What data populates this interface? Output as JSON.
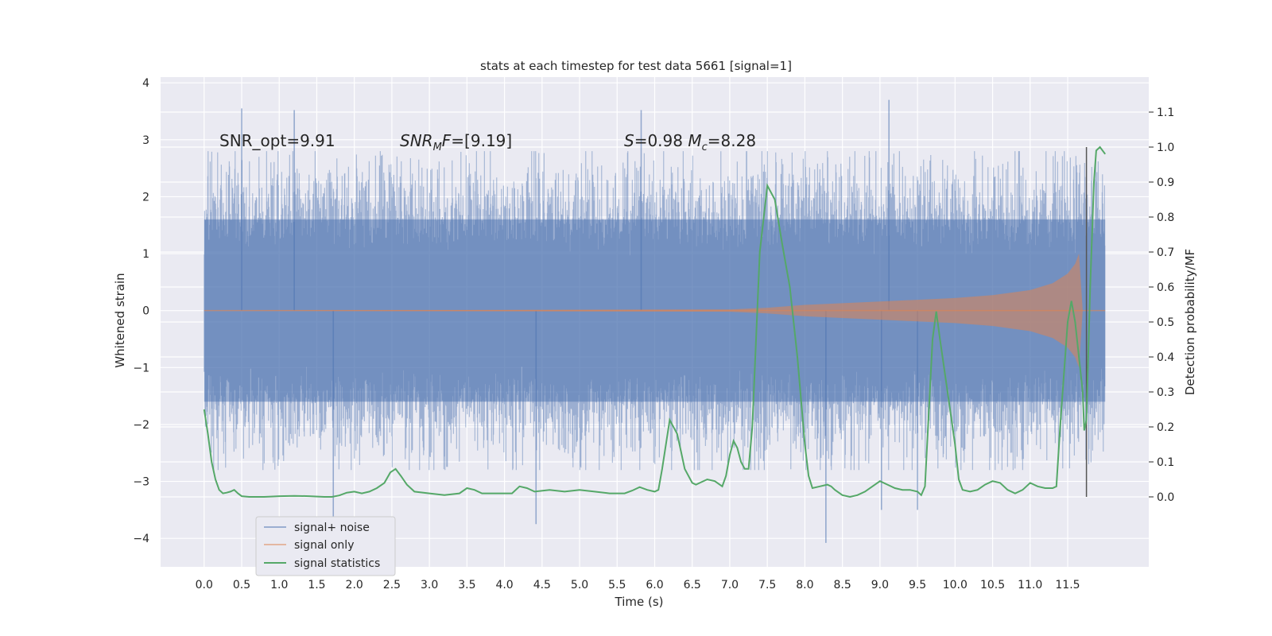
{
  "chart_data": {
    "type": "line",
    "title": "stats at each timestep for test data 5661 [signal=1]",
    "xlabel": "Time (s)",
    "ylabel_left": "Whitened strain",
    "ylabel_right": "Detection probability/MF",
    "xlim": [
      -0.58,
      12.58
    ],
    "ylim_left": [
      -4.5,
      4.1
    ],
    "ylim_right": [
      -0.2,
      1.2
    ],
    "x_ticks": [
      "0.0",
      "0.5",
      "1.0",
      "1.5",
      "2.0",
      "2.5",
      "3.0",
      "3.5",
      "4.0",
      "4.5",
      "5.0",
      "5.5",
      "6.0",
      "6.5",
      "7.0",
      "7.5",
      "8.0",
      "8.5",
      "9.0",
      "9.5",
      "10.0",
      "10.5",
      "11.0",
      "11.5"
    ],
    "y_ticks_left": [
      "4",
      "3",
      "2",
      "1",
      "0",
      "−1",
      "−2",
      "−3",
      "−4"
    ],
    "y_ticks_right": [
      "1.1",
      "1.0",
      "0.9",
      "0.8",
      "0.7",
      "0.6",
      "0.5",
      "0.4",
      "0.3",
      "0.2",
      "0.1",
      "0.0"
    ],
    "grid": true,
    "legend_position": "lower-left",
    "annotations": [
      {
        "text": "SNR_opt=9.91",
        "x": 0.2,
        "y": 2.9
      },
      {
        "text": "SNRMF=[9.19]",
        "x": 2.6,
        "y": 2.9
      },
      {
        "text": "S=0.98   Mc=8.28",
        "x": 5.6,
        "y": 2.9
      }
    ],
    "vertical_line_x": 11.75,
    "series": [
      {
        "name": "signal+ noise",
        "color": "#4c72b0",
        "axis": "left",
        "x_range": [
          0.0,
          12.0
        ],
        "band_envelope_abs": 1.6,
        "peak_points": [
          [
            0.5,
            3.55
          ],
          [
            1.2,
            3.52
          ],
          [
            5.82,
            3.52
          ],
          [
            9.12,
            3.7
          ],
          [
            8.28,
            -4.08
          ],
          [
            4.42,
            -3.75
          ],
          [
            1.72,
            -3.62
          ],
          [
            9.02,
            -3.5
          ],
          [
            9.5,
            -3.5
          ]
        ]
      },
      {
        "name": "signal only",
        "color": "#dd8452",
        "axis": "left",
        "x_range": [
          0.0,
          11.7
        ],
        "envelope": [
          [
            0.0,
            0.0
          ],
          [
            7.0,
            0.02
          ],
          [
            7.5,
            0.05
          ],
          [
            8.0,
            0.1
          ],
          [
            8.5,
            0.13
          ],
          [
            9.0,
            0.16
          ],
          [
            9.5,
            0.19
          ],
          [
            10.0,
            0.22
          ],
          [
            10.5,
            0.27
          ],
          [
            11.0,
            0.36
          ],
          [
            11.3,
            0.48
          ],
          [
            11.5,
            0.65
          ],
          [
            11.6,
            0.82
          ],
          [
            11.65,
            1.0
          ],
          [
            11.7,
            0.0
          ]
        ]
      },
      {
        "name": "signal statistics",
        "color": "#55a868",
        "axis": "right",
        "points": [
          [
            0.0,
            0.25
          ],
          [
            0.05,
            0.18
          ],
          [
            0.1,
            0.1
          ],
          [
            0.15,
            0.05
          ],
          [
            0.2,
            0.02
          ],
          [
            0.25,
            0.01
          ],
          [
            0.3,
            0.012
          ],
          [
            0.35,
            0.015
          ],
          [
            0.4,
            0.02
          ],
          [
            0.45,
            0.01
          ],
          [
            0.5,
            0.002
          ],
          [
            0.6,
            0.0
          ],
          [
            0.8,
            0.0
          ],
          [
            1.0,
            0.002
          ],
          [
            1.2,
            0.003
          ],
          [
            1.4,
            0.002
          ],
          [
            1.6,
            0.0
          ],
          [
            1.7,
            0.0
          ],
          [
            1.8,
            0.004
          ],
          [
            1.9,
            0.012
          ],
          [
            2.0,
            0.015
          ],
          [
            2.1,
            0.01
          ],
          [
            2.2,
            0.015
          ],
          [
            2.3,
            0.025
          ],
          [
            2.4,
            0.04
          ],
          [
            2.48,
            0.07
          ],
          [
            2.55,
            0.08
          ],
          [
            2.62,
            0.06
          ],
          [
            2.7,
            0.035
          ],
          [
            2.8,
            0.015
          ],
          [
            3.0,
            0.01
          ],
          [
            3.2,
            0.005
          ],
          [
            3.4,
            0.01
          ],
          [
            3.5,
            0.025
          ],
          [
            3.6,
            0.02
          ],
          [
            3.7,
            0.01
          ],
          [
            3.9,
            0.01
          ],
          [
            4.1,
            0.01
          ],
          [
            4.2,
            0.03
          ],
          [
            4.3,
            0.025
          ],
          [
            4.4,
            0.015
          ],
          [
            4.6,
            0.02
          ],
          [
            4.8,
            0.015
          ],
          [
            5.0,
            0.02
          ],
          [
            5.2,
            0.015
          ],
          [
            5.4,
            0.01
          ],
          [
            5.6,
            0.01
          ],
          [
            5.7,
            0.018
          ],
          [
            5.8,
            0.028
          ],
          [
            5.9,
            0.02
          ],
          [
            6.0,
            0.015
          ],
          [
            6.05,
            0.02
          ],
          [
            6.1,
            0.08
          ],
          [
            6.2,
            0.22
          ],
          [
            6.3,
            0.18
          ],
          [
            6.35,
            0.13
          ],
          [
            6.4,
            0.08
          ],
          [
            6.5,
            0.04
          ],
          [
            6.55,
            0.035
          ],
          [
            6.6,
            0.04
          ],
          [
            6.7,
            0.05
          ],
          [
            6.8,
            0.045
          ],
          [
            6.9,
            0.03
          ],
          [
            6.95,
            0.06
          ],
          [
            7.0,
            0.12
          ],
          [
            7.05,
            0.16
          ],
          [
            7.1,
            0.14
          ],
          [
            7.15,
            0.1
          ],
          [
            7.2,
            0.08
          ],
          [
            7.25,
            0.08
          ],
          [
            7.3,
            0.2
          ],
          [
            7.4,
            0.7
          ],
          [
            7.5,
            0.89
          ],
          [
            7.6,
            0.85
          ],
          [
            7.7,
            0.72
          ],
          [
            7.8,
            0.6
          ],
          [
            7.9,
            0.4
          ],
          [
            8.0,
            0.15
          ],
          [
            8.05,
            0.06
          ],
          [
            8.1,
            0.025
          ],
          [
            8.2,
            0.03
          ],
          [
            8.3,
            0.035
          ],
          [
            8.35,
            0.03
          ],
          [
            8.4,
            0.02
          ],
          [
            8.5,
            0.005
          ],
          [
            8.6,
            0.0
          ],
          [
            8.7,
            0.005
          ],
          [
            8.8,
            0.015
          ],
          [
            8.9,
            0.03
          ],
          [
            9.0,
            0.045
          ],
          [
            9.1,
            0.035
          ],
          [
            9.2,
            0.025
          ],
          [
            9.3,
            0.02
          ],
          [
            9.4,
            0.02
          ],
          [
            9.5,
            0.015
          ],
          [
            9.55,
            0.005
          ],
          [
            9.6,
            0.03
          ],
          [
            9.7,
            0.45
          ],
          [
            9.75,
            0.53
          ],
          [
            9.8,
            0.45
          ],
          [
            9.9,
            0.3
          ],
          [
            10.0,
            0.15
          ],
          [
            10.05,
            0.05
          ],
          [
            10.1,
            0.02
          ],
          [
            10.2,
            0.015
          ],
          [
            10.3,
            0.02
          ],
          [
            10.4,
            0.035
          ],
          [
            10.5,
            0.045
          ],
          [
            10.6,
            0.04
          ],
          [
            10.7,
            0.02
          ],
          [
            10.8,
            0.01
          ],
          [
            10.9,
            0.02
          ],
          [
            11.0,
            0.04
          ],
          [
            11.1,
            0.03
          ],
          [
            11.2,
            0.025
          ],
          [
            11.3,
            0.025
          ],
          [
            11.35,
            0.03
          ],
          [
            11.4,
            0.2
          ],
          [
            11.5,
            0.5
          ],
          [
            11.55,
            0.56
          ],
          [
            11.6,
            0.5
          ],
          [
            11.7,
            0.3
          ],
          [
            11.72,
            0.19
          ],
          [
            11.75,
            0.22
          ],
          [
            11.8,
            0.6
          ],
          [
            11.85,
            0.9
          ],
          [
            11.88,
            0.99
          ],
          [
            11.93,
            1.0
          ],
          [
            12.0,
            0.98
          ]
        ]
      }
    ]
  }
}
